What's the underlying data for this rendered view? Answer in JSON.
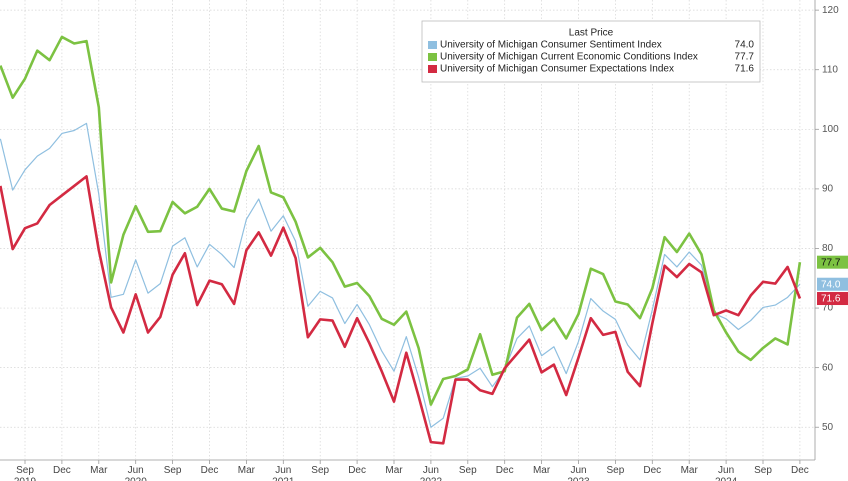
{
  "chart_data": {
    "type": "line",
    "legend_title": "Last Price",
    "categories": [
      null,
      null,
      "Sep 2019",
      null,
      null,
      "Dec",
      null,
      null,
      "Mar",
      null,
      null,
      "Jun 2020",
      null,
      null,
      "Sep",
      null,
      null,
      "Dec",
      null,
      null,
      "Mar",
      null,
      null,
      "Jun 2021",
      null,
      null,
      "Sep",
      null,
      null,
      "Dec",
      null,
      null,
      "Mar",
      null,
      null,
      "Jun 2022",
      null,
      null,
      "Sep",
      null,
      null,
      "Dec",
      null,
      null,
      "Mar",
      null,
      null,
      "Jun 2023",
      null,
      null,
      "Sep",
      null,
      null,
      "Dec",
      null,
      null,
      "Mar",
      null,
      null,
      "Jun 2024",
      null,
      null,
      "Sep",
      null,
      null,
      "Dec"
    ],
    "series": [
      {
        "name": "University of Michigan Consumer Sentiment Index",
        "color": "#8fbfe0",
        "width": 1.2,
        "last_label": "74.0",
        "values": [
          98.4,
          89.8,
          93.2,
          95.5,
          96.8,
          99.3,
          99.8,
          101.0,
          89.1,
          71.8,
          72.3,
          78.1,
          72.5,
          74.1,
          80.4,
          81.8,
          76.9,
          80.7,
          79.0,
          76.8,
          84.9,
          88.3,
          82.9,
          85.5,
          81.2,
          70.3,
          72.8,
          71.7,
          67.4,
          70.6,
          67.2,
          62.8,
          59.4,
          65.2,
          58.4,
          50.0,
          51.5,
          58.2,
          58.6,
          59.9,
          56.8,
          59.7,
          64.9,
          67.0,
          62.0,
          63.5,
          59.0,
          64.4,
          71.6,
          69.5,
          68.1,
          63.8,
          61.3,
          69.7,
          79.0,
          76.9,
          79.4,
          77.2,
          69.1,
          68.2,
          66.4,
          67.9,
          70.1,
          70.5,
          71.8,
          74.0
        ]
      },
      {
        "name": "University of Michigan Current Economic Conditions Index",
        "color": "#7cc242",
        "width": 2.6,
        "last_label": "77.7",
        "values": [
          110.7,
          105.3,
          108.5,
          113.2,
          111.6,
          115.5,
          114.4,
          114.8,
          103.7,
          74.3,
          82.3,
          87.1,
          82.8,
          82.9,
          87.8,
          85.9,
          87.0,
          90.0,
          86.7,
          86.2,
          93.0,
          97.2,
          89.4,
          88.6,
          84.5,
          78.5,
          80.1,
          77.7,
          73.6,
          74.2,
          72.0,
          68.2,
          67.2,
          69.4,
          63.3,
          53.8,
          58.1,
          58.6,
          59.7,
          65.6,
          58.8,
          59.4,
          68.4,
          70.7,
          66.3,
          68.2,
          64.9,
          69.0,
          76.6,
          75.7,
          71.1,
          70.6,
          68.3,
          73.3,
          81.9,
          79.4,
          82.5,
          79.0,
          69.6,
          65.9,
          62.7,
          61.3,
          63.3,
          64.9,
          63.9,
          77.7
        ]
      },
      {
        "name": "University of Michigan Consumer Expectations Index",
        "color": "#d32a42",
        "width": 2.6,
        "last_label": "71.6",
        "values": [
          90.5,
          79.9,
          83.4,
          84.2,
          87.3,
          88.9,
          90.5,
          92.1,
          79.7,
          70.1,
          65.9,
          72.3,
          65.9,
          68.5,
          75.6,
          79.2,
          70.5,
          74.6,
          74.0,
          70.7,
          79.7,
          82.7,
          78.8,
          83.5,
          78.4,
          65.1,
          68.1,
          67.9,
          63.5,
          68.3,
          64.1,
          59.4,
          54.3,
          62.5,
          55.2,
          47.5,
          47.3,
          58.0,
          58.0,
          56.2,
          55.6,
          59.9,
          62.3,
          64.7,
          59.2,
          60.5,
          55.4,
          61.7,
          68.3,
          65.5,
          66.0,
          59.3,
          56.9,
          67.4,
          77.1,
          75.2,
          77.4,
          76.0,
          68.8,
          69.6,
          68.8,
          72.1,
          74.4,
          74.1,
          76.9,
          71.6
        ]
      }
    ],
    "ylim": [
      44.5,
      121.7
    ],
    "yticks": [
      50,
      60,
      70,
      80,
      90,
      100,
      110,
      120
    ],
    "grid": true,
    "axis_side": "right",
    "legend_position": "top"
  }
}
